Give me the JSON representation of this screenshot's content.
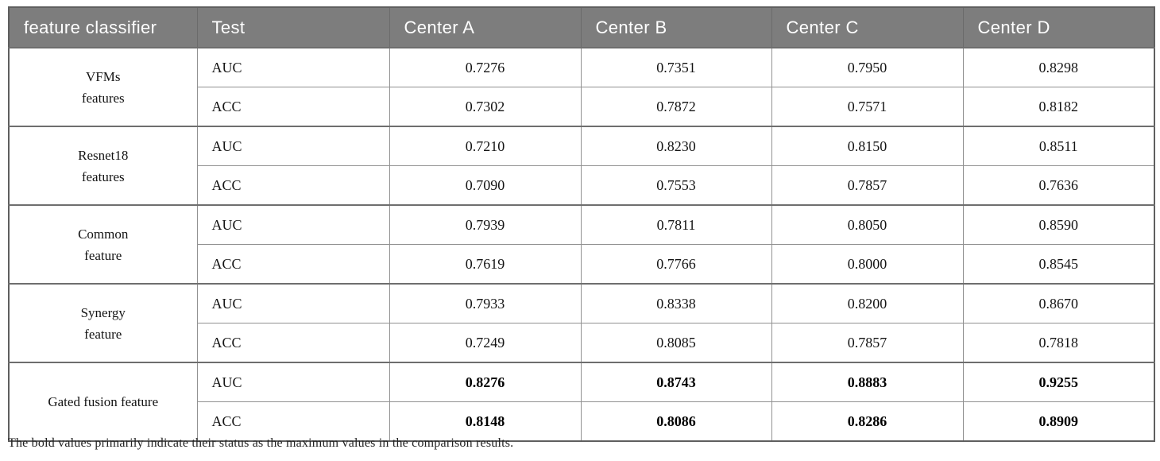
{
  "page": {
    "footnote": "The bold values primarily indicate their status as the maximum values in the comparison results."
  },
  "colors": {
    "header_bg": "#7d7d7d",
    "header_text": "#ffffff",
    "border_inner": "#919191",
    "border_group": "#6e6e6e",
    "body_text": "#141414"
  },
  "table": {
    "headers": [
      "feature classifier",
      "Test",
      "Center A",
      "Center B",
      "Center C",
      "Center D"
    ],
    "groups": [
      {
        "feature_lines": [
          "VFMs",
          "features"
        ],
        "rows": [
          {
            "test": "AUC",
            "values": [
              "0.7276",
              "0.7351",
              "0.7950",
              "0.8298"
            ]
          },
          {
            "test": "ACC",
            "values": [
              "0.7302",
              "0.7872",
              "0.7571",
              "0.8182"
            ]
          }
        ]
      },
      {
        "feature_lines": [
          "Resnet18",
          "features"
        ],
        "rows": [
          {
            "test": "AUC",
            "values": [
              "0.7210",
              "0.8230",
              "0.8150",
              "0.8511"
            ]
          },
          {
            "test": "ACC",
            "values": [
              "0.7090",
              "0.7553",
              "0.7857",
              "0.7636"
            ]
          }
        ]
      },
      {
        "feature_lines": [
          "Common",
          "feature"
        ],
        "rows": [
          {
            "test": "AUC",
            "values": [
              "0.7939",
              "0.7811",
              "0.8050",
              "0.8590"
            ]
          },
          {
            "test": "ACC",
            "values": [
              "0.7619",
              "0.7766",
              "0.8000",
              "0.8545"
            ]
          }
        ]
      },
      {
        "feature_lines": [
          "Synergy",
          "feature"
        ],
        "rows": [
          {
            "test": "AUC",
            "values": [
              "0.7933",
              "0.8338",
              "0.8200",
              "0.8670"
            ]
          },
          {
            "test": "ACC",
            "values": [
              "0.7249",
              "0.8085",
              "0.7857",
              "0.7818"
            ]
          }
        ]
      },
      {
        "feature_lines": [
          "Gated fusion feature"
        ],
        "rows": [
          {
            "test": "AUC",
            "values": [
              "0.8276",
              "0.8743",
              "0.8883",
              "0.9255"
            ]
          },
          {
            "test": "ACC",
            "values": [
              "0.8148",
              "0.8086",
              "0.8286",
              "0.8909"
            ]
          }
        ]
      }
    ]
  }
}
